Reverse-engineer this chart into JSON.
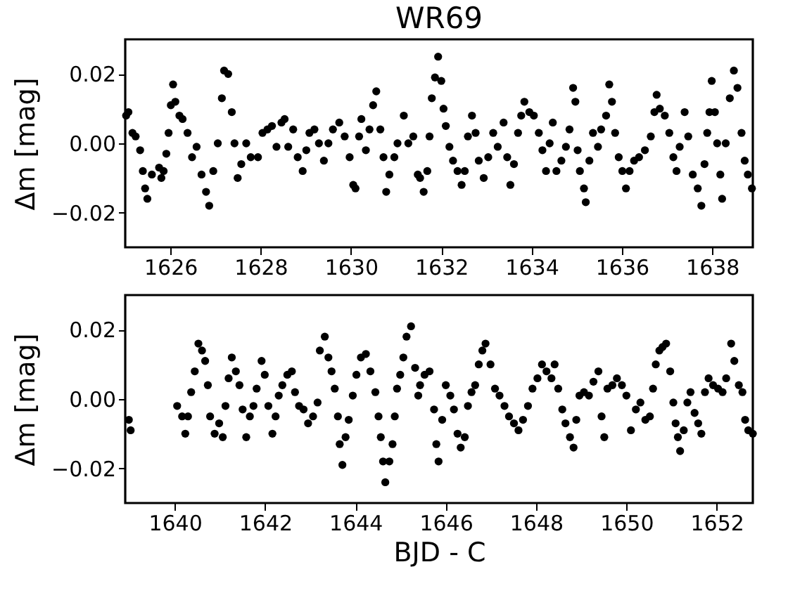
{
  "chart_data": [
    {
      "type": "scatter",
      "title": "WR69",
      "ylabel": "Δm [mag]",
      "color": "#000000",
      "marker": "circle",
      "xlim": [
        1625.0,
        1638.9
      ],
      "xticks": [
        1626,
        1628,
        1630,
        1632,
        1634,
        1636,
        1638
      ],
      "ylim": [
        -0.03,
        0.03
      ],
      "yticks": [
        {
          "value": -0.02,
          "label": "−0.02"
        },
        {
          "value": 0,
          "label": "0.00"
        },
        {
          "value": 0.02,
          "label": "0.02"
        }
      ],
      "x": [
        1625.02,
        1625.07,
        1625.16,
        1625.23,
        1625.33,
        1625.39,
        1625.44,
        1625.49,
        1625.59,
        1625.75,
        1625.8,
        1625.85,
        1625.91,
        1625.96,
        1626.01,
        1626.06,
        1626.11,
        1626.2,
        1626.27,
        1626.38,
        1626.48,
        1626.58,
        1626.69,
        1626.79,
        1626.86,
        1626.95,
        1627.05,
        1627.14,
        1627.19,
        1627.28,
        1627.36,
        1627.42,
        1627.49,
        1627.57,
        1627.68,
        1627.78,
        1627.94,
        1628.04,
        1628.15,
        1628.25,
        1628.35,
        1628.46,
        1628.53,
        1628.61,
        1628.72,
        1628.82,
        1628.93,
        1629.01,
        1629.08,
        1629.19,
        1629.29,
        1629.4,
        1629.5,
        1629.6,
        1629.74,
        1629.86,
        1629.97,
        1630.05,
        1630.1,
        1630.18,
        1630.23,
        1630.33,
        1630.41,
        1630.49,
        1630.56,
        1630.65,
        1630.72,
        1630.78,
        1630.85,
        1630.96,
        1631.03,
        1631.17,
        1631.27,
        1631.38,
        1631.48,
        1631.53,
        1631.61,
        1631.69,
        1631.74,
        1631.79,
        1631.86,
        1631.93,
        1632.0,
        1632.05,
        1632.1,
        1632.18,
        1632.26,
        1632.36,
        1632.45,
        1632.52,
        1632.59,
        1632.68,
        1632.76,
        1632.83,
        1632.94,
        1633.04,
        1633.15,
        1633.25,
        1633.38,
        1633.46,
        1633.53,
        1633.61,
        1633.7,
        1633.77,
        1633.84,
        1633.95,
        1634.05,
        1634.16,
        1634.24,
        1634.32,
        1634.4,
        1634.47,
        1634.55,
        1634.66,
        1634.76,
        1634.84,
        1634.92,
        1634.97,
        1635.02,
        1635.07,
        1635.16,
        1635.2,
        1635.28,
        1635.36,
        1635.47,
        1635.54,
        1635.65,
        1635.72,
        1635.78,
        1635.85,
        1635.93,
        1636.01,
        1636.09,
        1636.17,
        1636.27,
        1636.38,
        1636.51,
        1636.64,
        1636.72,
        1636.77,
        1636.84,
        1636.95,
        1637.05,
        1637.14,
        1637.21,
        1637.28,
        1637.39,
        1637.47,
        1637.57,
        1637.68,
        1637.76,
        1637.83,
        1637.89,
        1637.94,
        1637.99,
        1638.06,
        1638.11,
        1638.18,
        1638.22,
        1638.3,
        1638.39,
        1638.48,
        1638.56,
        1638.65,
        1638.72,
        1638.79,
        1638.88
      ],
      "values": [
        0.008,
        0.009,
        0.003,
        0.002,
        -0.002,
        -0.008,
        -0.013,
        -0.016,
        -0.009,
        -0.007,
        -0.01,
        -0.008,
        -0.003,
        0.003,
        0.011,
        0.017,
        0.012,
        0.008,
        0.007,
        0.003,
        -0.004,
        -0.001,
        -0.009,
        -0.014,
        -0.018,
        -0.008,
        0.0,
        0.013,
        0.021,
        0.02,
        0.009,
        0.0,
        -0.01,
        -0.006,
        0.0,
        -0.004,
        -0.004,
        0.003,
        0.004,
        0.005,
        -0.001,
        0.006,
        0.007,
        -0.001,
        0.004,
        -0.004,
        -0.008,
        -0.002,
        0.003,
        0.004,
        0.0,
        -0.005,
        0.0,
        0.004,
        0.006,
        0.002,
        -0.004,
        -0.012,
        -0.013,
        0.002,
        0.007,
        -0.002,
        0.004,
        0.011,
        0.015,
        0.004,
        -0.004,
        -0.014,
        -0.009,
        -0.004,
        0.0,
        0.008,
        0.0,
        0.002,
        -0.009,
        -0.01,
        -0.014,
        -0.008,
        0.002,
        0.013,
        0.019,
        0.025,
        0.018,
        0.01,
        0.005,
        -0.001,
        -0.005,
        -0.008,
        -0.012,
        -0.008,
        0.002,
        0.008,
        0.003,
        -0.005,
        -0.01,
        -0.004,
        0.003,
        -0.001,
        0.006,
        -0.004,
        -0.012,
        -0.006,
        0.003,
        0.008,
        0.012,
        0.009,
        0.008,
        0.003,
        -0.002,
        -0.008,
        0.0,
        0.006,
        -0.008,
        -0.005,
        -0.001,
        0.004,
        0.016,
        0.012,
        -0.002,
        -0.008,
        -0.013,
        -0.017,
        -0.005,
        0.003,
        -0.001,
        0.004,
        0.008,
        0.017,
        0.012,
        0.003,
        -0.004,
        -0.008,
        -0.013,
        -0.008,
        -0.005,
        -0.004,
        -0.002,
        0.002,
        0.009,
        0.014,
        0.01,
        0.008,
        0.003,
        -0.004,
        -0.008,
        -0.001,
        0.009,
        0.002,
        -0.009,
        -0.013,
        -0.018,
        -0.006,
        0.003,
        0.009,
        0.018,
        0.009,
        0.0,
        -0.009,
        -0.016,
        0.0,
        0.013,
        0.021,
        0.016,
        0.003,
        -0.005,
        -0.009,
        -0.013
      ]
    },
    {
      "type": "scatter",
      "xlabel": "BJD - C",
      "ylabel": "Δm [mag]",
      "color": "#000000",
      "marker": "circle",
      "xlim": [
        1638.9,
        1652.8
      ],
      "xticks": [
        1640,
        1642,
        1644,
        1646,
        1648,
        1650,
        1652
      ],
      "ylim": [
        -0.03,
        0.03
      ],
      "yticks": [
        {
          "value": -0.02,
          "label": "−0.02"
        },
        {
          "value": 0,
          "label": "0.00"
        },
        {
          "value": 0.02,
          "label": "0.02"
        }
      ],
      "x": [
        1638.98,
        1639.02,
        1640.05,
        1640.16,
        1640.23,
        1640.29,
        1640.36,
        1640.44,
        1640.52,
        1640.6,
        1640.67,
        1640.73,
        1640.78,
        1640.88,
        1640.98,
        1641.06,
        1641.12,
        1641.19,
        1641.26,
        1641.35,
        1641.43,
        1641.5,
        1641.58,
        1641.66,
        1641.74,
        1641.81,
        1641.92,
        1641.99,
        1642.07,
        1642.16,
        1642.23,
        1642.3,
        1642.38,
        1642.49,
        1642.59,
        1642.66,
        1642.75,
        1642.85,
        1642.95,
        1643.06,
        1643.16,
        1643.21,
        1643.32,
        1643.4,
        1643.47,
        1643.54,
        1643.61,
        1643.65,
        1643.71,
        1643.78,
        1643.85,
        1643.94,
        1644.02,
        1644.12,
        1644.23,
        1644.33,
        1644.44,
        1644.51,
        1644.56,
        1644.61,
        1644.66,
        1644.75,
        1644.82,
        1644.87,
        1644.92,
        1644.99,
        1645.06,
        1645.13,
        1645.23,
        1645.32,
        1645.39,
        1645.43,
        1645.53,
        1645.64,
        1645.74,
        1645.79,
        1645.84,
        1645.92,
        1646.0,
        1646.1,
        1646.18,
        1646.26,
        1646.33,
        1646.42,
        1646.49,
        1646.57,
        1646.65,
        1646.73,
        1646.81,
        1646.88,
        1646.99,
        1647.09,
        1647.19,
        1647.3,
        1647.4,
        1647.51,
        1647.61,
        1647.71,
        1647.82,
        1647.92,
        1648.03,
        1648.13,
        1648.23,
        1648.34,
        1648.41,
        1648.49,
        1648.58,
        1648.65,
        1648.75,
        1648.83,
        1648.89,
        1648.96,
        1649.06,
        1649.17,
        1649.27,
        1649.38,
        1649.45,
        1649.51,
        1649.58,
        1649.69,
        1649.79,
        1649.9,
        1650.0,
        1650.1,
        1650.21,
        1650.31,
        1650.42,
        1650.52,
        1650.59,
        1650.65,
        1650.73,
        1650.8,
        1650.88,
        1650.97,
        1651.04,
        1651.09,
        1651.14,
        1651.19,
        1651.27,
        1651.35,
        1651.42,
        1651.51,
        1651.59,
        1651.66,
        1651.74,
        1651.82,
        1651.92,
        1652.03,
        1652.13,
        1652.21,
        1652.32,
        1652.39,
        1652.49,
        1652.57,
        1652.63,
        1652.7,
        1652.8
      ],
      "values": [
        -0.006,
        -0.009,
        -0.002,
        -0.005,
        -0.01,
        -0.005,
        0.002,
        0.008,
        0.016,
        0.014,
        0.011,
        0.004,
        -0.005,
        -0.01,
        -0.007,
        -0.011,
        -0.002,
        0.006,
        0.012,
        0.008,
        0.004,
        -0.003,
        -0.011,
        -0.005,
        -0.002,
        0.003,
        0.011,
        0.007,
        -0.002,
        -0.01,
        -0.005,
        0.001,
        0.004,
        0.007,
        0.008,
        0.002,
        -0.002,
        -0.003,
        -0.007,
        -0.005,
        -0.001,
        0.014,
        0.018,
        0.012,
        0.008,
        0.003,
        -0.005,
        -0.013,
        -0.019,
        -0.011,
        -0.006,
        0.001,
        0.007,
        0.012,
        0.013,
        0.008,
        0.002,
        -0.005,
        -0.011,
        -0.018,
        -0.024,
        -0.018,
        -0.013,
        -0.005,
        0.003,
        0.007,
        0.012,
        0.018,
        0.021,
        0.009,
        0.001,
        0.004,
        0.007,
        0.008,
        -0.003,
        -0.013,
        -0.018,
        -0.006,
        0.004,
        0.001,
        -0.003,
        -0.01,
        -0.014,
        -0.011,
        -0.002,
        0.002,
        0.004,
        0.01,
        0.014,
        0.016,
        0.01,
        0.003,
        0.001,
        -0.002,
        -0.005,
        -0.007,
        -0.009,
        -0.006,
        -0.002,
        0.003,
        0.006,
        0.01,
        0.008,
        0.006,
        0.01,
        0.003,
        -0.003,
        -0.007,
        -0.011,
        -0.014,
        -0.006,
        0.001,
        0.002,
        0.001,
        0.005,
        0.008,
        -0.005,
        -0.011,
        0.003,
        0.004,
        0.006,
        0.004,
        0.001,
        -0.009,
        -0.003,
        -0.001,
        -0.006,
        -0.005,
        0.003,
        0.01,
        0.014,
        0.015,
        0.016,
        0.008,
        -0.001,
        -0.007,
        -0.011,
        -0.015,
        -0.009,
        -0.001,
        0.002,
        -0.004,
        -0.007,
        -0.01,
        0.002,
        0.006,
        0.004,
        0.003,
        0.002,
        0.006,
        0.016,
        0.011,
        0.004,
        0.002,
        -0.006,
        -0.009,
        -0.01
      ]
    }
  ]
}
